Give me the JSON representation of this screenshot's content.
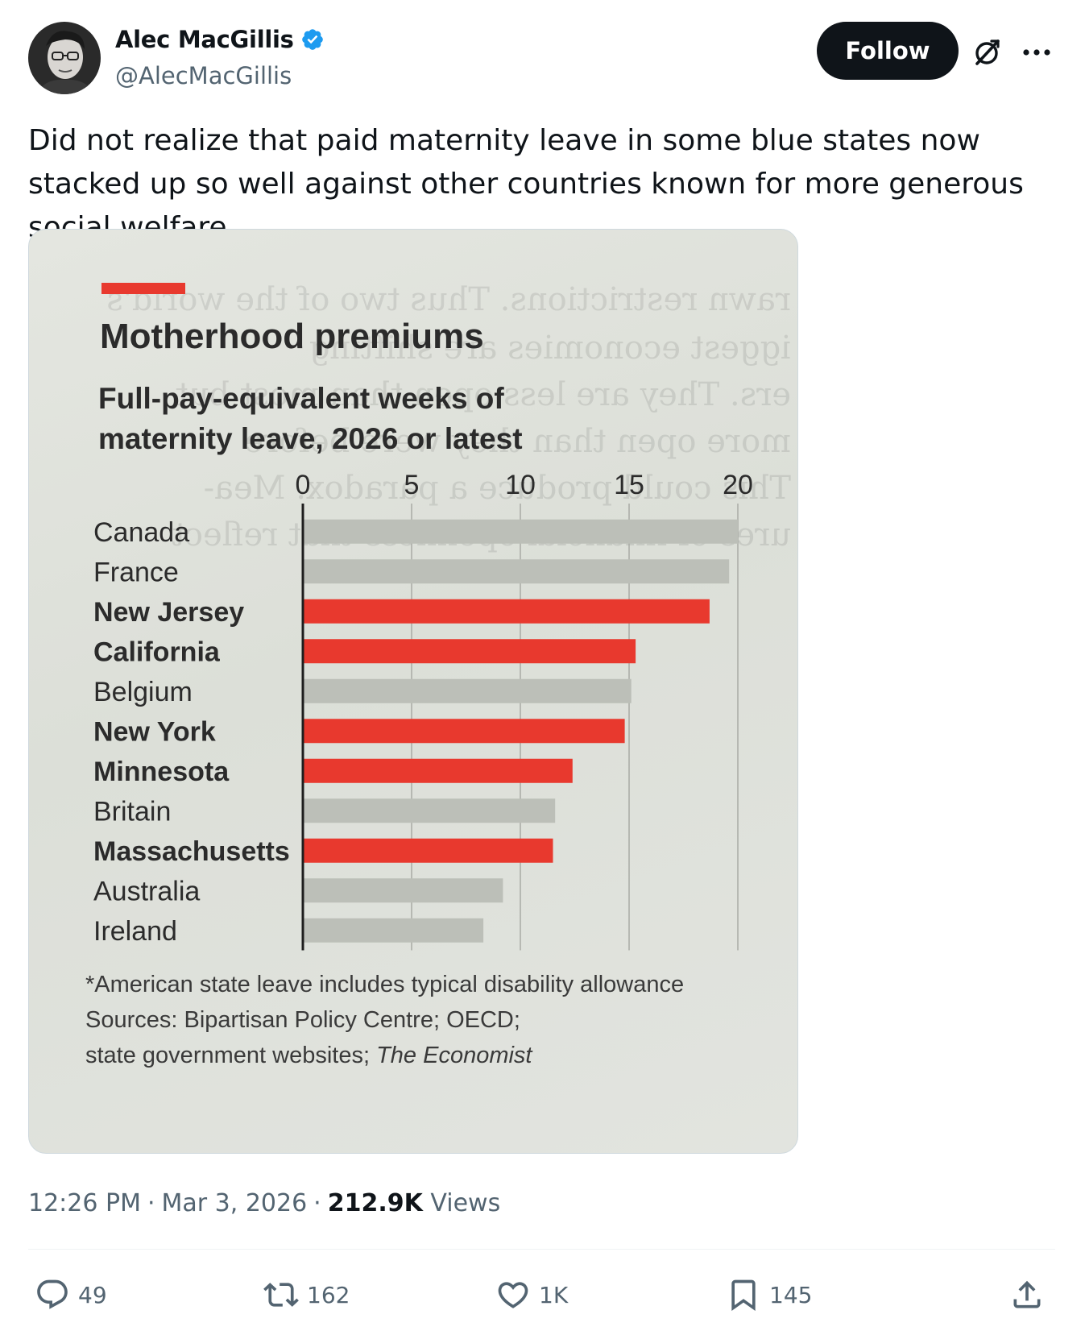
{
  "author": {
    "display_name": "Alec MacGillis",
    "handle": "@AlecMacGillis"
  },
  "follow_label": "Follow",
  "tweet_text": "Did not realize that paid maternity leave in some blue states now stacked up so well against other countries known for more generous social welfare.",
  "meta": {
    "time": "12:26 PM",
    "separator": "·",
    "date": "Mar 3, 2026",
    "views_count": "212.9K",
    "views_label": "Views"
  },
  "actions": {
    "replies": "49",
    "reposts": "162",
    "likes": "1K",
    "bookmarks": "145"
  },
  "colors": {
    "accent_red": "#e8392e",
    "grey_bar": "#bcbfb8",
    "verified_blue": "#1d9bf0"
  },
  "chart_data": {
    "type": "bar",
    "orientation": "horizontal",
    "title": "Motherhood premiums",
    "subtitle_line1": "Full-pay-equivalent weeks of",
    "subtitle_line2": "maternity leave, 2026 or latest",
    "xlim": [
      0,
      20
    ],
    "xticks": [
      "0",
      "5",
      "10",
      "15",
      "20"
    ],
    "categories": [
      "Canada",
      "France",
      "New Jersey",
      "California",
      "Belgium",
      "New York",
      "Minnesota",
      "Britain",
      "Massachusetts",
      "Australia",
      "Ireland"
    ],
    "values": [
      20,
      19.6,
      18.7,
      15.3,
      15.1,
      14.8,
      12.4,
      11.6,
      11.5,
      9.2,
      8.3
    ],
    "highlight": [
      false,
      false,
      true,
      true,
      false,
      true,
      true,
      false,
      true,
      false,
      false
    ],
    "footnote": "*American state leave includes typical disability allowance",
    "sources_line1": "Sources: Bipartisan Policy Centre; OECD;",
    "sources_line2_prefix": "state government websites; ",
    "sources_line2_italic": "The Economist"
  }
}
